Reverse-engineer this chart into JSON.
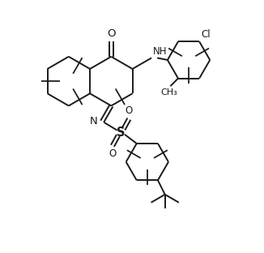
{
  "background_color": "#ffffff",
  "line_color": "#1a1a1a",
  "line_width": 1.4,
  "font_size": 8.5,
  "fig_width": 3.26,
  "fig_height": 3.12,
  "dpi": 100,
  "xlim": [
    0,
    10
  ],
  "ylim": [
    0,
    9.6
  ]
}
